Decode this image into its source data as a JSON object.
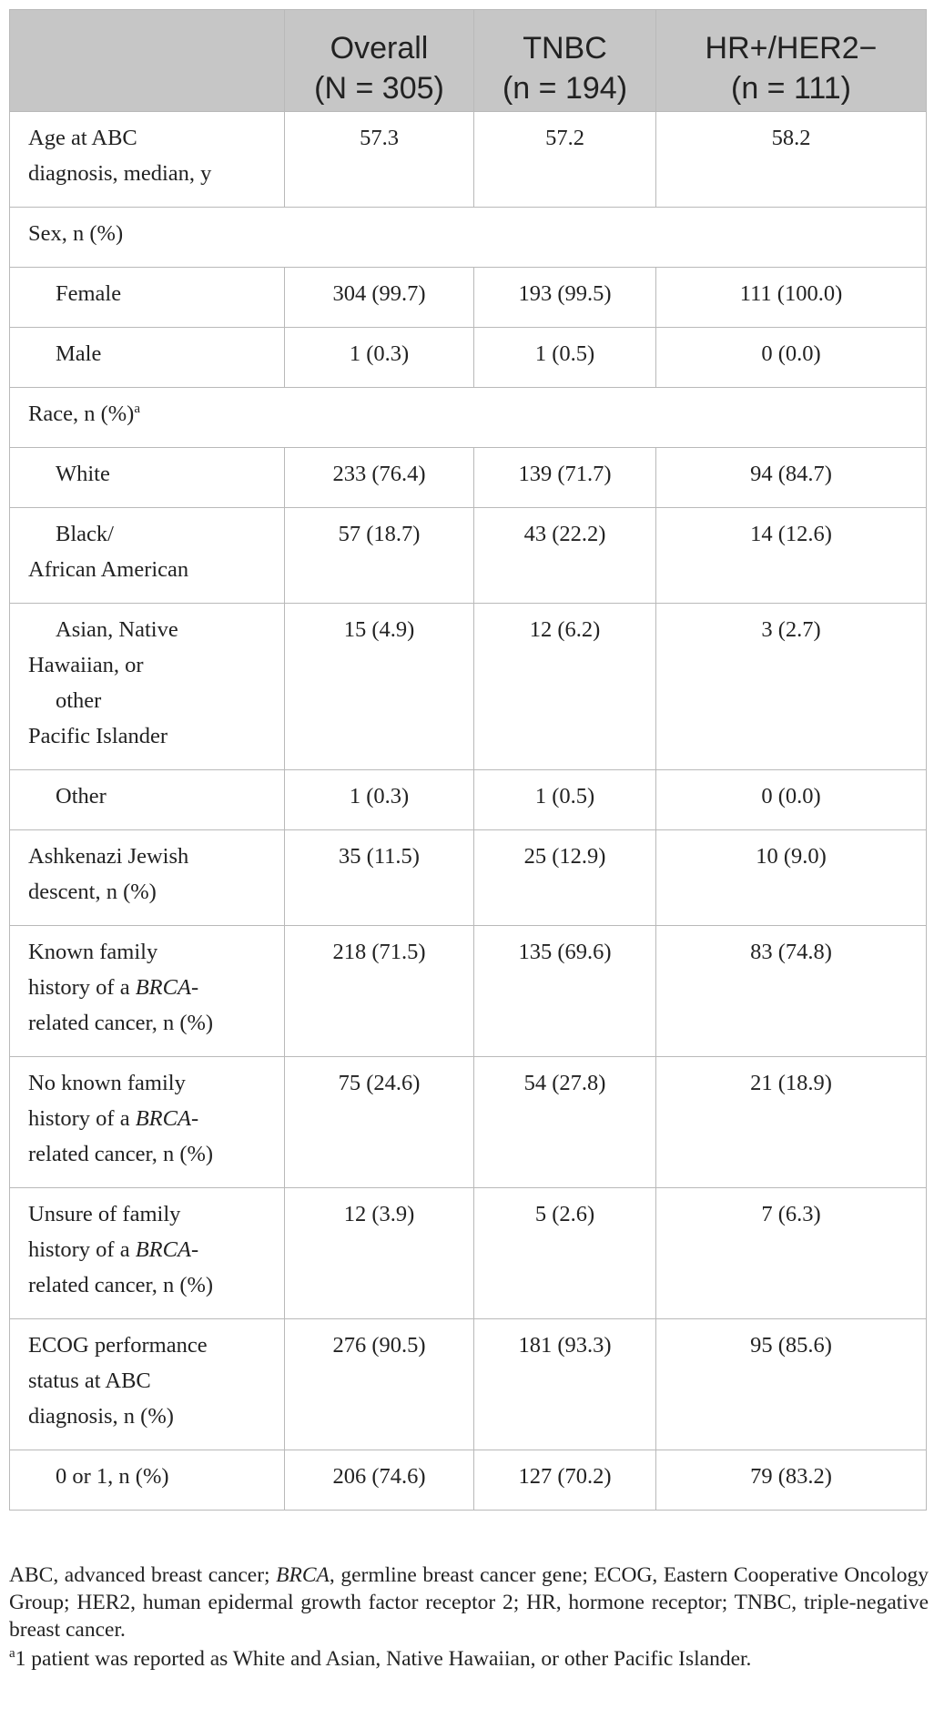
{
  "header": {
    "col1_line1": "Overall",
    "col1_line2": "(N = 305)",
    "col2_line1": "TNBC",
    "col2_line2": "(n = 194)",
    "col3_line1": "HR+/HER2−",
    "col3_line2": "(n = 111)"
  },
  "rows": {
    "age": {
      "l1": "Age at ABC",
      "l2": "diagnosis, median, y",
      "v1": "57.3",
      "v2": "57.2",
      "v3": "58.2"
    },
    "sex": {
      "label": "Sex, n (%)"
    },
    "female": {
      "label": "Female",
      "v1": "304 (99.7)",
      "v2": "193 (99.5)",
      "v3": "111 (100.0)"
    },
    "male": {
      "label": "Male",
      "v1": "1 (0.3)",
      "v2": "1 (0.5)",
      "v3": "0 (0.0)"
    },
    "race": {
      "label": "Race, n (%)",
      "sup": "a"
    },
    "white": {
      "label": "White",
      "v1": "233 (76.4)",
      "v2": "139 (71.7)",
      "v3": "94 (84.7)"
    },
    "black": {
      "l1": "Black/",
      "l2": "African American",
      "v1": "57 (18.7)",
      "v2": "43 (22.2)",
      "v3": "14 (12.6)"
    },
    "asian": {
      "l1": "Asian, Native",
      "l2": "Hawaiian, or",
      "l3": "other",
      "l4": "Pacific Islander",
      "v1": "15 (4.9)",
      "v2": "12 (6.2)",
      "v3": "3 (2.7)"
    },
    "other": {
      "label": "Other",
      "v1": "1 (0.3)",
      "v2": "1 (0.5)",
      "v3": "0 (0.0)"
    },
    "ashkenazi": {
      "l1": "Ashkenazi Jewish",
      "l2": "descent, n (%)",
      "v1": "35 (11.5)",
      "v2": "25 (12.9)",
      "v3": "10 (9.0)"
    },
    "known_family": {
      "l1": "Known family",
      "l2a": "history of a ",
      "l2b": "BRCA",
      "l2c": "-",
      "l3": "related cancer, n (%)",
      "v1": "218 (71.5)",
      "v2": "135 (69.6)",
      "v3": "83 (74.8)"
    },
    "no_family": {
      "l1": "No known family",
      "l2a": "history of a ",
      "l2b": "BRCA",
      "l2c": "-",
      "l3": "related cancer, n (%)",
      "v1": "75 (24.6)",
      "v2": "54 (27.8)",
      "v3": "21 (18.9)"
    },
    "unsure_family": {
      "l1": "Unsure of family",
      "l2a": "history of a ",
      "l2b": "BRCA",
      "l2c": "-",
      "l3": "related cancer, n (%)",
      "v1": "12 (3.9)",
      "v2": "5 (2.6)",
      "v3": "7 (6.3)"
    },
    "ecog": {
      "l1": "ECOG performance",
      "l2": "status at ABC",
      "l3": "diagnosis, n (%)",
      "v1": "276 (90.5)",
      "v2": "181 (93.3)",
      "v3": "95 (85.6)"
    },
    "ecog01": {
      "label": "0 or 1, n (%)",
      "v1": "206 (74.6)",
      "v2": "127 (70.2)",
      "v3": "79 (83.2)"
    }
  },
  "footnote": {
    "p1a": "ABC, advanced breast cancer; ",
    "p1b": "BRCA",
    "p1c": ", germline breast cancer gene; ECOG, Eastern Cooperative Oncology Group; HER2, human epidermal growth factor receptor 2; HR, hormone receptor; TNBC, triple-negative breast cancer.",
    "p2_sup": "a",
    "p2": "1 patient was reported as White and Asian, Native Hawaiian, or other Pacific Islander."
  }
}
